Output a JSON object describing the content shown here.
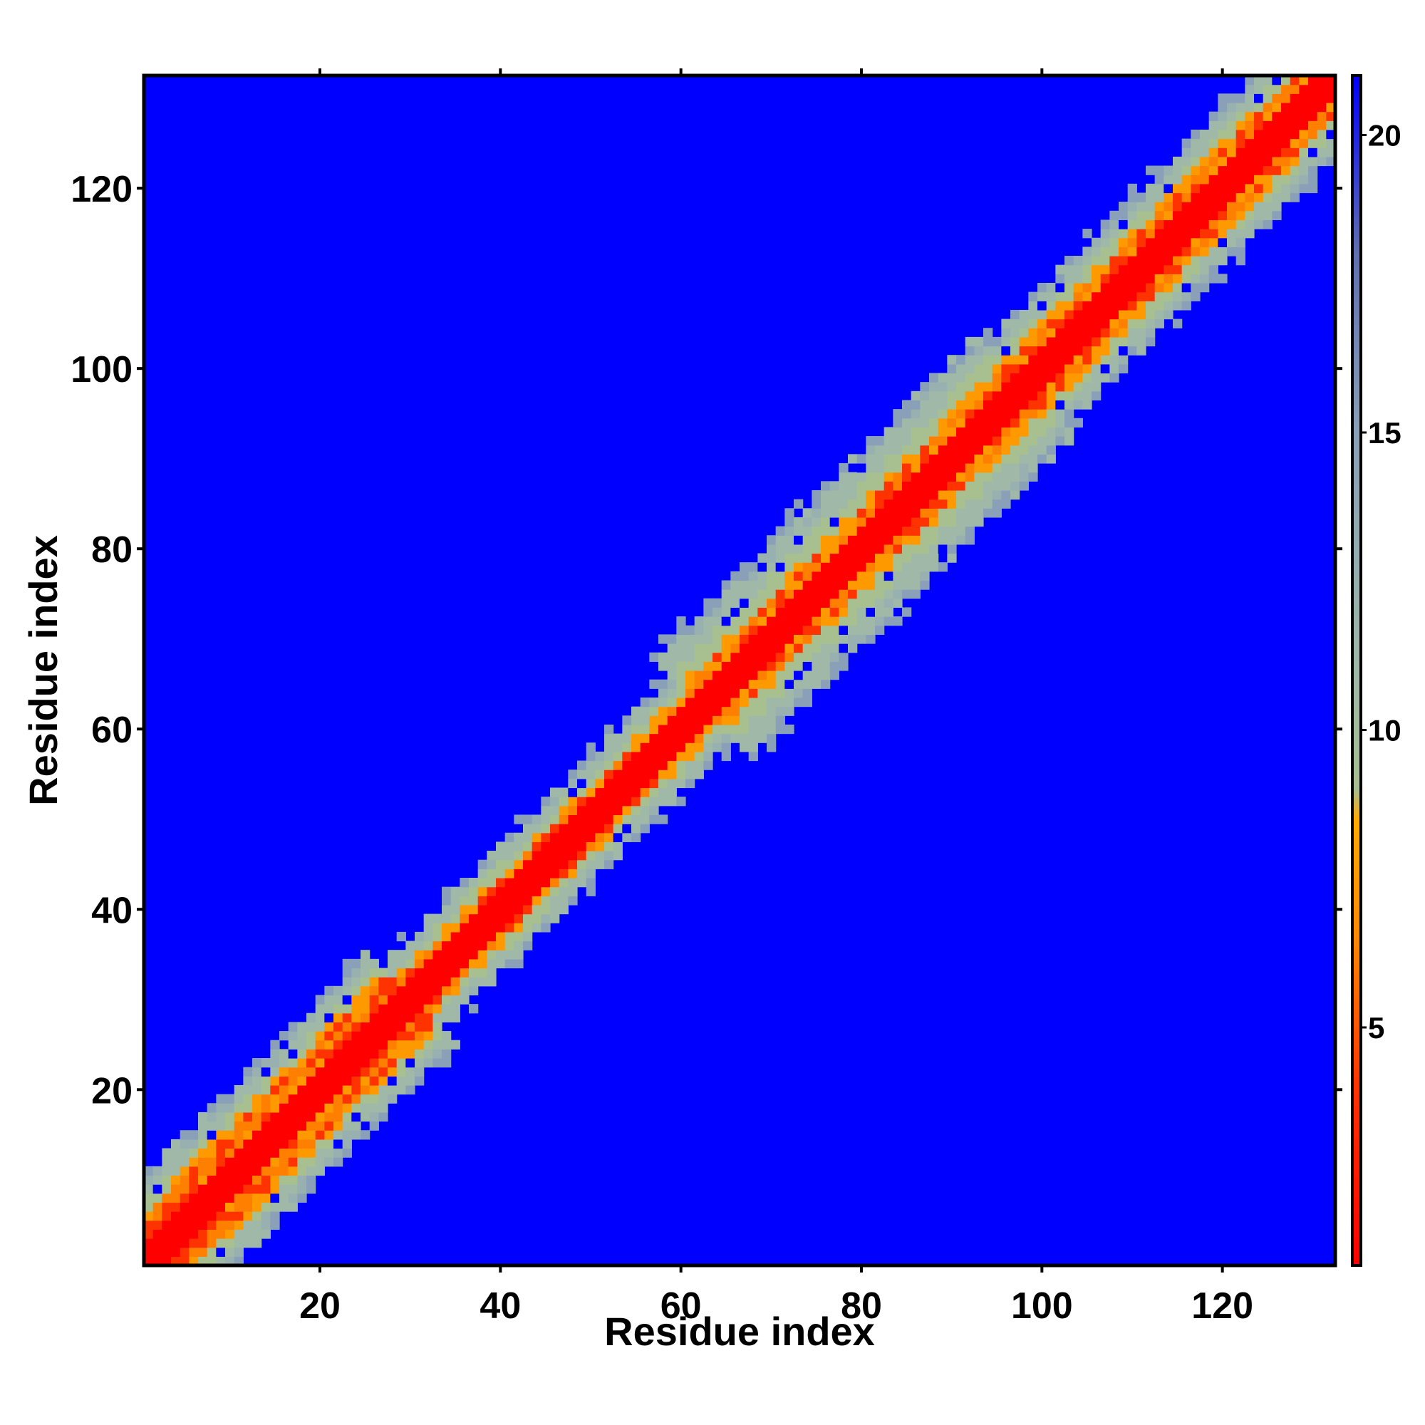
{
  "chart_data": {
    "type": "heatmap",
    "title": "",
    "xlabel": "Residue index",
    "ylabel": "Residue index",
    "xlim": [
      0.5,
      132.5
    ],
    "ylim": [
      0.5,
      132.5
    ],
    "xticks": [
      20,
      40,
      60,
      80,
      100,
      120
    ],
    "yticks": [
      20,
      40,
      60,
      80,
      100,
      120
    ],
    "n_residues": 132,
    "grid": false,
    "colorbar": {
      "position": "right",
      "range": [
        1,
        21
      ],
      "ticks": [
        5,
        10,
        15,
        20
      ],
      "stops": [
        {
          "value": 1,
          "color": "#ff0000"
        },
        {
          "value": 4,
          "color": "#ff3300"
        },
        {
          "value": 6.5,
          "color": "#ff8800"
        },
        {
          "value": 8.5,
          "color": "#ffaa00"
        },
        {
          "value": 9,
          "color": "#a8c090"
        },
        {
          "value": 11,
          "color": "#a0b8a8"
        },
        {
          "value": 15,
          "color": "#8aa0b8"
        },
        {
          "value": 18,
          "color": "#6070b0"
        },
        {
          "value": 21,
          "color": "#0000ff"
        }
      ]
    },
    "distance_profile": {
      "description_units": "distance value grows with |i - j|; band half-widths (residues) for contact regions along the diagonal",
      "segments": [
        {
          "range": [
            1,
            30
          ],
          "red_width": 2.5,
          "orange_width": 5,
          "green_width": 10
        },
        {
          "range": [
            30,
            62
          ],
          "red_width": 2,
          "orange_width": 3,
          "green_width": 7
        },
        {
          "range": [
            62,
            98
          ],
          "red_width": 2,
          "orange_width": 4,
          "green_width": 11
        },
        {
          "range": [
            98,
            132
          ],
          "red_width": 2,
          "orange_width": 4,
          "green_width": 9
        }
      ]
    }
  }
}
